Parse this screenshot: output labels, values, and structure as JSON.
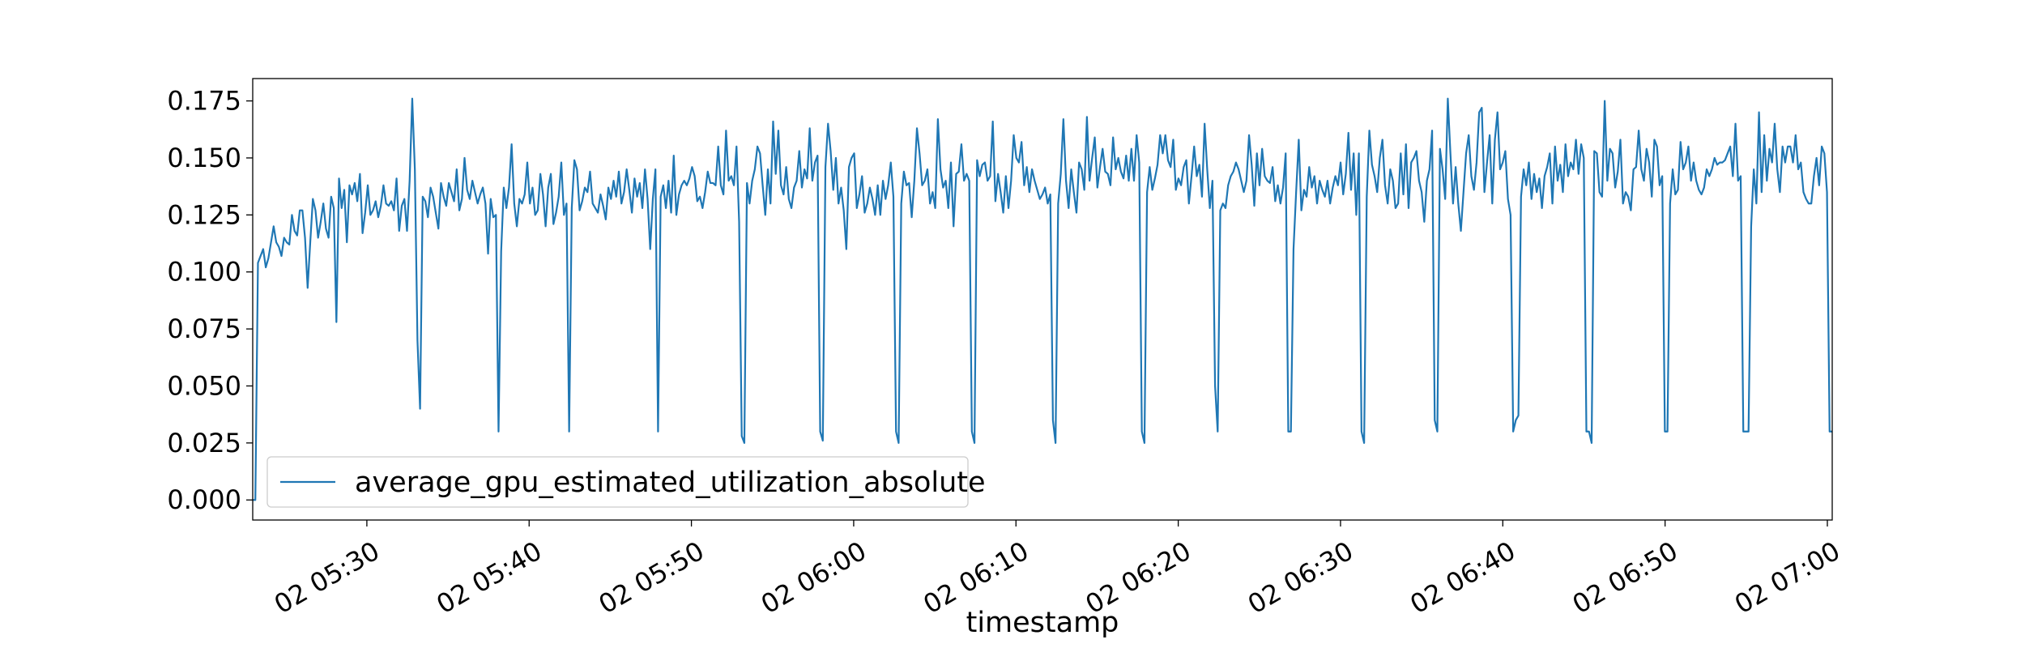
{
  "chart_data": {
    "type": "line",
    "title": "",
    "xlabel": "timestamp",
    "ylabel": "",
    "x_start": "02 05:22:58",
    "x_end": "02 07:00:18",
    "xlim": [
      "02 05:22:58",
      "02 07:00:18"
    ],
    "ylim": [
      -0.0088,
      0.1848
    ],
    "xticks": [
      "02 05:30",
      "02 05:40",
      "02 05:50",
      "02 06:00",
      "02 06:10",
      "02 06:20",
      "02 06:30",
      "02 06:40",
      "02 06:50",
      "02 07:00"
    ],
    "yticks": [
      "0.000",
      "0.025",
      "0.050",
      "0.075",
      "0.100",
      "0.125",
      "0.150",
      "0.175"
    ],
    "grid": false,
    "legend_position": "lower-left",
    "series": [
      {
        "name": "average_gpu_estimated_utilization_absolute",
        "color": "#1f77b4",
        "values": [
          0.0,
          0.0,
          0.104,
          0.107,
          0.11,
          0.102,
          0.106,
          0.113,
          0.12,
          0.113,
          0.111,
          0.107,
          0.115,
          0.113,
          0.112,
          0.125,
          0.118,
          0.116,
          0.127,
          0.127,
          0.115,
          0.093,
          0.113,
          0.132,
          0.127,
          0.115,
          0.122,
          0.13,
          0.119,
          0.115,
          0.133,
          0.128,
          0.078,
          0.141,
          0.128,
          0.136,
          0.113,
          0.138,
          0.134,
          0.139,
          0.131,
          0.143,
          0.117,
          0.126,
          0.138,
          0.125,
          0.127,
          0.131,
          0.124,
          0.129,
          0.138,
          0.13,
          0.129,
          0.131,
          0.127,
          0.141,
          0.118,
          0.129,
          0.132,
          0.118,
          0.14,
          0.176,
          0.145,
          0.07,
          0.04,
          0.133,
          0.131,
          0.124,
          0.137,
          0.133,
          0.126,
          0.119,
          0.139,
          0.133,
          0.129,
          0.139,
          0.135,
          0.131,
          0.145,
          0.127,
          0.132,
          0.15,
          0.136,
          0.132,
          0.14,
          0.135,
          0.13,
          0.134,
          0.137,
          0.13,
          0.108,
          0.132,
          0.124,
          0.125,
          0.03,
          0.109,
          0.137,
          0.128,
          0.137,
          0.156,
          0.13,
          0.12,
          0.132,
          0.13,
          0.134,
          0.148,
          0.13,
          0.137,
          0.125,
          0.127,
          0.143,
          0.134,
          0.12,
          0.137,
          0.143,
          0.121,
          0.126,
          0.133,
          0.148,
          0.125,
          0.13,
          0.03,
          0.128,
          0.149,
          0.145,
          0.127,
          0.131,
          0.137,
          0.135,
          0.144,
          0.13,
          0.128,
          0.126,
          0.134,
          0.129,
          0.123,
          0.137,
          0.132,
          0.14,
          0.133,
          0.144,
          0.13,
          0.135,
          0.145,
          0.136,
          0.126,
          0.141,
          0.133,
          0.139,
          0.128,
          0.145,
          0.132,
          0.11,
          0.132,
          0.145,
          0.03,
          0.133,
          0.138,
          0.128,
          0.14,
          0.126,
          0.151,
          0.125,
          0.134,
          0.138,
          0.14,
          0.138,
          0.141,
          0.146,
          0.142,
          0.131,
          0.133,
          0.128,
          0.135,
          0.144,
          0.139,
          0.139,
          0.138,
          0.155,
          0.138,
          0.134,
          0.162,
          0.14,
          0.142,
          0.138,
          0.155,
          0.122,
          0.028,
          0.025,
          0.139,
          0.13,
          0.14,
          0.145,
          0.155,
          0.152,
          0.138,
          0.125,
          0.145,
          0.13,
          0.166,
          0.143,
          0.162,
          0.138,
          0.134,
          0.146,
          0.132,
          0.128,
          0.137,
          0.14,
          0.153,
          0.137,
          0.145,
          0.141,
          0.163,
          0.14,
          0.148,
          0.151,
          0.03,
          0.026,
          0.146,
          0.165,
          0.153,
          0.136,
          0.15,
          0.13,
          0.137,
          0.127,
          0.11,
          0.146,
          0.15,
          0.152,
          0.128,
          0.134,
          0.142,
          0.126,
          0.13,
          0.137,
          0.132,
          0.125,
          0.138,
          0.125,
          0.14,
          0.132,
          0.138,
          0.148,
          0.133,
          0.03,
          0.025,
          0.13,
          0.144,
          0.138,
          0.139,
          0.124,
          0.14,
          0.163,
          0.152,
          0.138,
          0.14,
          0.145,
          0.13,
          0.135,
          0.128,
          0.167,
          0.145,
          0.137,
          0.14,
          0.128,
          0.148,
          0.12,
          0.143,
          0.144,
          0.156,
          0.14,
          0.143,
          0.14,
          0.03,
          0.025,
          0.149,
          0.142,
          0.147,
          0.148,
          0.14,
          0.142,
          0.166,
          0.131,
          0.143,
          0.135,
          0.126,
          0.142,
          0.128,
          0.14,
          0.16,
          0.15,
          0.148,
          0.157,
          0.138,
          0.146,
          0.135,
          0.145,
          0.14,
          0.136,
          0.132,
          0.134,
          0.137,
          0.13,
          0.134,
          0.035,
          0.025,
          0.13,
          0.143,
          0.167,
          0.14,
          0.128,
          0.145,
          0.135,
          0.126,
          0.148,
          0.145,
          0.136,
          0.168,
          0.14,
          0.15,
          0.159,
          0.137,
          0.146,
          0.154,
          0.144,
          0.143,
          0.138,
          0.159,
          0.145,
          0.15,
          0.144,
          0.141,
          0.151,
          0.14,
          0.154,
          0.14,
          0.16,
          0.148,
          0.03,
          0.025,
          0.135,
          0.146,
          0.136,
          0.141,
          0.147,
          0.16,
          0.152,
          0.16,
          0.149,
          0.146,
          0.158,
          0.136,
          0.141,
          0.138,
          0.146,
          0.149,
          0.13,
          0.142,
          0.155,
          0.142,
          0.147,
          0.133,
          0.165,
          0.145,
          0.128,
          0.14,
          0.05,
          0.03,
          0.127,
          0.13,
          0.128,
          0.138,
          0.142,
          0.144,
          0.148,
          0.145,
          0.14,
          0.135,
          0.14,
          0.16,
          0.147,
          0.129,
          0.152,
          0.138,
          0.154,
          0.142,
          0.14,
          0.139,
          0.146,
          0.131,
          0.138,
          0.13,
          0.137,
          0.152,
          0.03,
          0.03,
          0.11,
          0.135,
          0.158,
          0.127,
          0.136,
          0.133,
          0.146,
          0.137,
          0.142,
          0.13,
          0.14,
          0.136,
          0.133,
          0.14,
          0.13,
          0.137,
          0.142,
          0.138,
          0.148,
          0.134,
          0.143,
          0.161,
          0.136,
          0.152,
          0.125,
          0.152,
          0.03,
          0.025,
          0.133,
          0.162,
          0.147,
          0.142,
          0.135,
          0.15,
          0.158,
          0.138,
          0.13,
          0.145,
          0.14,
          0.128,
          0.13,
          0.152,
          0.134,
          0.156,
          0.128,
          0.148,
          0.15,
          0.153,
          0.14,
          0.135,
          0.122,
          0.14,
          0.145,
          0.162,
          0.035,
          0.03,
          0.154,
          0.145,
          0.132,
          0.176,
          0.152,
          0.13,
          0.146,
          0.13,
          0.118,
          0.135,
          0.152,
          0.16,
          0.142,
          0.136,
          0.148,
          0.17,
          0.172,
          0.135,
          0.148,
          0.16,
          0.13,
          0.158,
          0.17,
          0.145,
          0.148,
          0.153,
          0.132,
          0.125,
          0.03,
          0.035,
          0.037,
          0.133,
          0.145,
          0.138,
          0.148,
          0.132,
          0.143,
          0.135,
          0.141,
          0.128,
          0.142,
          0.146,
          0.152,
          0.13,
          0.155,
          0.14,
          0.147,
          0.135,
          0.156,
          0.142,
          0.148,
          0.145,
          0.158,
          0.143,
          0.156,
          0.15,
          0.03,
          0.03,
          0.025,
          0.153,
          0.152,
          0.135,
          0.133,
          0.175,
          0.14,
          0.154,
          0.152,
          0.137,
          0.144,
          0.158,
          0.13,
          0.135,
          0.133,
          0.127,
          0.145,
          0.146,
          0.162,
          0.145,
          0.14,
          0.154,
          0.148,
          0.133,
          0.158,
          0.155,
          0.138,
          0.142,
          0.03,
          0.03,
          0.13,
          0.145,
          0.134,
          0.136,
          0.157,
          0.145,
          0.148,
          0.155,
          0.14,
          0.148,
          0.14,
          0.136,
          0.134,
          0.137,
          0.145,
          0.142,
          0.145,
          0.15,
          0.147,
          0.148,
          0.148,
          0.149,
          0.152,
          0.155,
          0.142,
          0.165,
          0.14,
          0.142,
          0.03,
          0.03,
          0.03,
          0.12,
          0.145,
          0.13,
          0.17,
          0.135,
          0.16,
          0.14,
          0.154,
          0.148,
          0.165,
          0.145,
          0.135,
          0.155,
          0.148,
          0.155,
          0.155,
          0.148,
          0.16,
          0.145,
          0.148,
          0.135,
          0.132,
          0.13,
          0.13,
          0.142,
          0.15,
          0.138,
          0.155,
          0.152,
          0.135,
          0.03,
          0.03
        ]
      }
    ]
  }
}
